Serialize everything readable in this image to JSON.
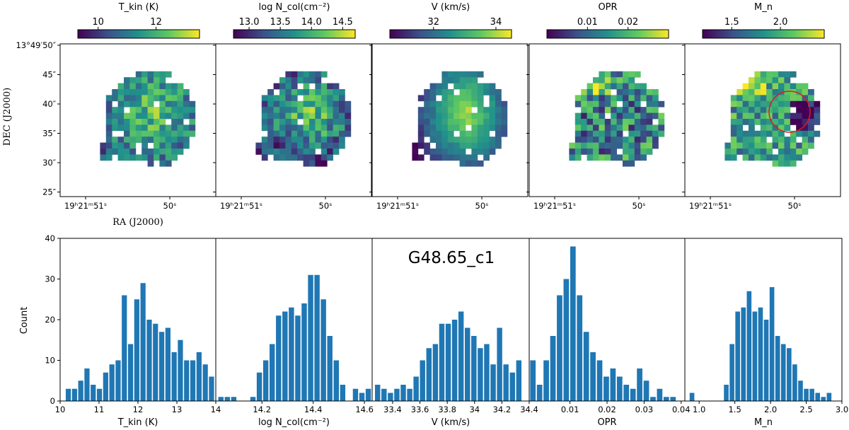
{
  "figure": {
    "label": "G48.65_c1",
    "map_ylabel": "DEC (J2000)",
    "map_xlabel": "RA (J2000)",
    "dec_ticks": [
      "13°49′50″",
      "45″",
      "40″",
      "35″",
      "30″",
      "25″"
    ],
    "ra_ticks_left": "19ʰ21ᵐ51ˢ",
    "ra_ticks_right": "50ˢ",
    "colormap": [
      "#440154",
      "#3b528b",
      "#21918c",
      "#5ec962",
      "#fde725"
    ],
    "circle_color": "#e31a1c"
  },
  "chart_data": [
    {
      "type": "heatmap",
      "panel": "Tkin map",
      "colorbar_title": "T_kin (K)",
      "colorbar_ticks": [
        10,
        12
      ],
      "colorbar_range": [
        9.3,
        13.5
      ]
    },
    {
      "type": "heatmap",
      "panel": "log Ncol map",
      "colorbar_title": "log N_col(cm⁻²)",
      "colorbar_ticks": [
        13.0,
        13.5,
        14.0,
        14.5
      ],
      "colorbar_tick_labels": [
        "13.0",
        "13.5",
        "14.0",
        "14.5"
      ],
      "colorbar_range": [
        12.75,
        14.7
      ]
    },
    {
      "type": "heatmap",
      "panel": "V map",
      "colorbar_title": "V (km/s)",
      "colorbar_ticks": [
        32,
        34
      ],
      "colorbar_range": [
        30.6,
        34.5
      ]
    },
    {
      "type": "heatmap",
      "panel": "OPR map",
      "colorbar_title": "OPR",
      "colorbar_ticks": [
        0.01,
        0.02
      ],
      "colorbar_tick_labels": [
        "0.01",
        "0.02"
      ],
      "colorbar_range": [
        0.0,
        0.03
      ]
    },
    {
      "type": "heatmap",
      "panel": "Mn map",
      "colorbar_title": "M_n",
      "colorbar_ticks": [
        1.5,
        2.0
      ],
      "colorbar_tick_labels": [
        "1.5",
        "2.0"
      ],
      "colorbar_range": [
        1.2,
        2.45
      ],
      "annotation": "red circle"
    },
    {
      "type": "bar",
      "panel": "Tkin histogram",
      "xlabel": "T_kin (K)",
      "ylabel": "Count",
      "xlim": [
        10.0,
        14.0
      ],
      "ylim": [
        0,
        40
      ],
      "xticks": [
        10,
        11,
        12,
        13,
        14
      ],
      "yticks": [
        0,
        10,
        20,
        30,
        40
      ],
      "x": [
        10.21,
        10.37,
        10.53,
        10.69,
        10.85,
        11.01,
        11.17,
        11.33,
        11.49,
        11.65,
        11.81,
        11.97,
        12.13,
        12.29,
        12.45,
        12.61,
        12.77,
        12.93,
        13.09,
        13.25,
        13.41,
        13.57,
        13.73,
        13.89
      ],
      "values": [
        3,
        3,
        5,
        8,
        4,
        3,
        7,
        9,
        10,
        26,
        14,
        25,
        29,
        20,
        19,
        17,
        18,
        12,
        15,
        10,
        10,
        12,
        9,
        6
      ]
    },
    {
      "type": "bar",
      "panel": "log Ncol histogram",
      "xlabel": "log N_col(cm⁻²)",
      "xlim": [
        14.02,
        14.63
      ],
      "ylim": [
        0,
        40
      ],
      "xticks": [
        14.2,
        14.4,
        14.6
      ],
      "x": [
        14.04,
        14.065,
        14.09,
        14.115,
        14.14,
        14.165,
        14.19,
        14.215,
        14.24,
        14.265,
        14.29,
        14.315,
        14.34,
        14.365,
        14.39,
        14.415,
        14.44,
        14.465,
        14.49,
        14.515,
        14.54,
        14.565,
        14.59,
        14.615
      ],
      "values": [
        1,
        1,
        1,
        0,
        0,
        1,
        7,
        10,
        14,
        21,
        22,
        23,
        21,
        24,
        31,
        31,
        25,
        16,
        10,
        4,
        0,
        3,
        2,
        3
      ]
    },
    {
      "type": "bar",
      "panel": "V histogram",
      "xlabel": "V (km/s)",
      "xlim": [
        33.25,
        34.4
      ],
      "ylim": [
        0,
        40
      ],
      "xticks": [
        33.4,
        33.6,
        33.8,
        34.0,
        34.2,
        34.4
      ],
      "x": [
        33.29,
        33.337,
        33.384,
        33.431,
        33.478,
        33.525,
        33.572,
        33.619,
        33.666,
        33.713,
        33.76,
        33.807,
        33.854,
        33.901,
        33.948,
        33.995,
        34.042,
        34.089,
        34.136,
        34.183,
        34.23,
        34.277,
        34.324,
        34.371
      ],
      "values": [
        4,
        3,
        2,
        3,
        4,
        3,
        6,
        10,
        13,
        14,
        19,
        19,
        20,
        22,
        18,
        16,
        13,
        14,
        9,
        18,
        9,
        7,
        10,
        0
      ]
    },
    {
      "type": "bar",
      "panel": "OPR histogram",
      "xlabel": "OPR",
      "xlim": [
        -0.001,
        0.041
      ],
      "ylim": [
        0,
        40
      ],
      "xticks": [
        0.01,
        0.02,
        0.03,
        0.04
      ],
      "x": [
        0.0,
        0.0018,
        0.0036,
        0.0054,
        0.0072,
        0.009,
        0.0108,
        0.0126,
        0.0144,
        0.0162,
        0.018,
        0.0198,
        0.0216,
        0.0234,
        0.0252,
        0.027,
        0.0288,
        0.0306,
        0.0324,
        0.0342,
        0.036,
        0.0378,
        0.0396
      ],
      "values": [
        10,
        4,
        10,
        16,
        26,
        30,
        38,
        26,
        17,
        12,
        10,
        6,
        8,
        6,
        4,
        3,
        8,
        5,
        1,
        3,
        1,
        1,
        0
      ]
    },
    {
      "type": "bar",
      "panel": "Mn histogram",
      "xlabel": "M_n",
      "xlim": [
        0.8,
        3.0
      ],
      "ylim": [
        0,
        40
      ],
      "xticks": [
        1.0,
        1.5,
        2.0,
        2.5,
        3.0
      ],
      "xtick_labels": [
        "1.0",
        "1.5",
        "2.0",
        "2.5",
        "3.0"
      ],
      "x": [
        0.9,
        0.98,
        1.06,
        1.14,
        1.22,
        1.3,
        1.38,
        1.46,
        1.54,
        1.62,
        1.7,
        1.78,
        1.86,
        1.94,
        2.02,
        2.1,
        2.18,
        2.26,
        2.34,
        2.42,
        2.5,
        2.58,
        2.66,
        2.74,
        2.82
      ],
      "values": [
        2,
        0,
        0,
        0,
        0,
        0,
        4,
        14,
        22,
        23,
        27,
        22,
        23,
        20,
        28,
        16,
        14,
        13,
        9,
        5,
        3,
        3,
        2,
        1,
        2
      ]
    }
  ]
}
